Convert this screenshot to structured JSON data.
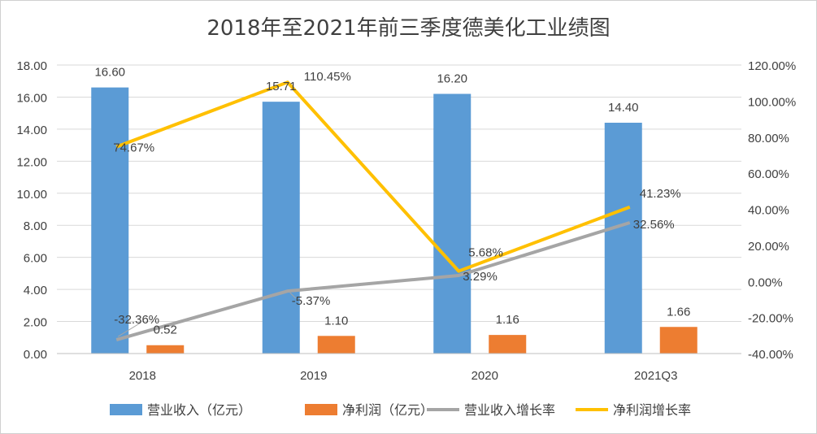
{
  "chart_data": {
    "type": "bar",
    "title": "2018年至2021年前三季度德美化工业绩图",
    "categories": [
      "2018",
      "2019",
      "2020",
      "2021Q3"
    ],
    "y_left": {
      "ylim": [
        0,
        18
      ],
      "ticks": [
        "0.00",
        "2.00",
        "4.00",
        "6.00",
        "8.00",
        "10.00",
        "12.00",
        "14.00",
        "16.00",
        "18.00"
      ]
    },
    "y_right": {
      "ylim": [
        -40,
        120
      ],
      "ticks": [
        "-40.00%",
        "-20.00%",
        "0.00%",
        "20.00%",
        "40.00%",
        "60.00%",
        "80.00%",
        "100.00%",
        "120.00%"
      ]
    },
    "grid": true,
    "legend_position": "bottom",
    "series": [
      {
        "name": "营业收入（亿元）",
        "kind": "bar",
        "axis": "left",
        "color": "#5b9bd5",
        "values": [
          16.6,
          15.71,
          16.2,
          14.4
        ],
        "labels": [
          "16.60",
          "15.71",
          "16.20",
          "14.40"
        ]
      },
      {
        "name": "净利润（亿元）",
        "kind": "bar",
        "axis": "left",
        "color": "#ed7d31",
        "values": [
          0.52,
          1.1,
          1.16,
          1.66
        ],
        "labels": [
          "0.52",
          "1.10",
          "1.16",
          "1.66"
        ]
      },
      {
        "name": "营业收入增长率",
        "kind": "line",
        "axis": "right",
        "color": "#a5a5a5",
        "values": [
          -32.36,
          -5.37,
          3.29,
          32.56
        ],
        "labels": [
          "-32.36%",
          "-5.37%",
          "3.29%",
          "32.56%"
        ]
      },
      {
        "name": "净利润增长率",
        "kind": "line",
        "axis": "right",
        "color": "#ffc000",
        "values": [
          74.67,
          110.45,
          5.68,
          41.23
        ],
        "labels": [
          "74.67%",
          "110.45%",
          "5.68%",
          "41.23%"
        ]
      }
    ]
  }
}
